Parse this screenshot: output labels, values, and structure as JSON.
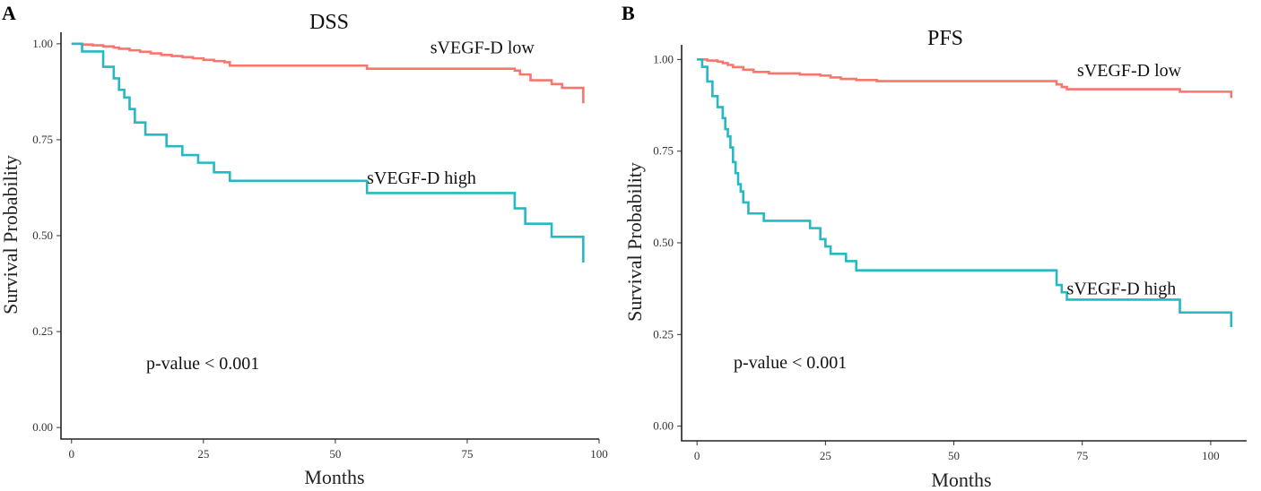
{
  "colors": {
    "low": "#f8766d",
    "high": "#24b9c3"
  },
  "chart_data": [
    {
      "type": "line",
      "subtype": "kaplan-meier",
      "panel": "A",
      "title": "DSS",
      "xlabel": "Months",
      "ylabel": "Survival Probability",
      "xlim": [
        -2,
        100
      ],
      "ylim": [
        -0.03,
        1.03
      ],
      "xticks": [
        0,
        25,
        50,
        75,
        100
      ],
      "yticks": [
        0.0,
        0.25,
        0.5,
        0.75,
        1.0
      ],
      "ytick_labels": [
        "0.00",
        "0.25",
        "0.50",
        "0.75",
        "1.00"
      ],
      "pvalue_text": "p-value < 0.001",
      "series": [
        {
          "name": "sVEGF-D low",
          "label_anchor": [
            68,
            0.975
          ],
          "x": [
            0,
            2,
            4,
            6,
            8,
            9,
            11,
            13,
            15,
            17,
            19,
            21,
            23,
            25,
            27,
            29,
            30,
            56,
            84,
            85,
            87,
            91,
            93,
            97,
            97
          ],
          "y": [
            1.0,
            0.998,
            0.996,
            0.993,
            0.99,
            0.987,
            0.983,
            0.979,
            0.975,
            0.971,
            0.968,
            0.965,
            0.962,
            0.958,
            0.955,
            0.952,
            0.943,
            0.935,
            0.93,
            0.92,
            0.905,
            0.895,
            0.885,
            0.875,
            0.845
          ]
        },
        {
          "name": "sVEGF-D high",
          "label_anchor": [
            56,
            0.635
          ],
          "x": [
            0,
            2,
            6,
            8,
            9,
            10,
            11,
            12,
            14,
            18,
            21,
            24,
            27,
            30,
            56,
            84,
            86,
            91,
            97
          ],
          "y": [
            1.0,
            0.98,
            0.94,
            0.91,
            0.88,
            0.86,
            0.83,
            0.795,
            0.763,
            0.733,
            0.71,
            0.69,
            0.665,
            0.643,
            0.611,
            0.571,
            0.531,
            0.497,
            0.43
          ]
        }
      ]
    },
    {
      "type": "line",
      "subtype": "kaplan-meier",
      "panel": "B",
      "title": "PFS",
      "xlabel": "Months",
      "ylabel": "Survival Probability",
      "xlim": [
        -3,
        107
      ],
      "ylim": [
        -0.04,
        1.04
      ],
      "xticks": [
        0,
        25,
        50,
        75,
        100
      ],
      "yticks": [
        0.0,
        0.25,
        0.5,
        0.75,
        1.0
      ],
      "ytick_labels": [
        "0.00",
        "0.25",
        "0.50",
        "0.75",
        "1.00"
      ],
      "pvalue_text": "p-value < 0.001",
      "series": [
        {
          "name": "sVEGF-D low",
          "label_anchor": [
            74,
            0.955
          ],
          "x": [
            0,
            2,
            4,
            5,
            6,
            7,
            9,
            11,
            14,
            20,
            24,
            26,
            28,
            31,
            35,
            70,
            71,
            72,
            94,
            104,
            104
          ],
          "y": [
            1.0,
            0.997,
            0.994,
            0.99,
            0.985,
            0.979,
            0.972,
            0.966,
            0.962,
            0.959,
            0.956,
            0.951,
            0.947,
            0.944,
            0.941,
            0.932,
            0.925,
            0.919,
            0.912,
            0.905,
            0.895
          ]
        },
        {
          "name": "sVEGF-D high",
          "label_anchor": [
            72,
            0.36
          ],
          "x": [
            0,
            1,
            2,
            3,
            4,
            5,
            5.5,
            6,
            6.5,
            7,
            7.5,
            8,
            8.5,
            9,
            10,
            13,
            22,
            24,
            25,
            26,
            29,
            31,
            70,
            71,
            72,
            94,
            104
          ],
          "y": [
            1.0,
            0.98,
            0.94,
            0.9,
            0.87,
            0.84,
            0.81,
            0.79,
            0.76,
            0.72,
            0.69,
            0.66,
            0.64,
            0.61,
            0.58,
            0.56,
            0.54,
            0.51,
            0.49,
            0.47,
            0.45,
            0.425,
            0.385,
            0.365,
            0.345,
            0.31,
            0.27
          ]
        }
      ]
    }
  ]
}
